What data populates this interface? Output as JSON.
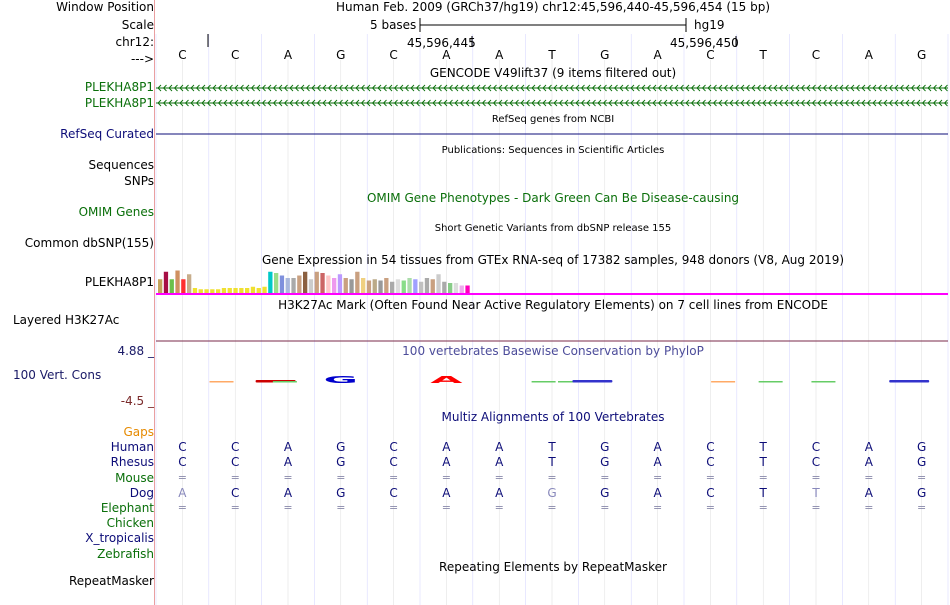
{
  "colors": {
    "gencode": "#0a6f0a",
    "refseq": "#0c0c78",
    "omim": "#0a6f0a",
    "cons_title": "#4c4c9a",
    "cons_pos": "#191966",
    "cons_neg": "#7a2a2a",
    "gaps": "#e68a00",
    "species": "#0c0c78",
    "species_green": "#0a6f0a",
    "h3k27ac": "#ff00ff",
    "gridline": "#bbbbff"
  },
  "header": {
    "window_label": "Window Position",
    "window_title": "Human Feb. 2009 (GRCh37/hg19)   chr12:45,596,440-45,596,454 (15 bp)",
    "scale_label": "Scale",
    "scale_text": "5 bases",
    "scale_db": "hg19",
    "chrom_label": "chr12:",
    "pos_mark1": "45,596,445",
    "pos_mark2": "45,596,450",
    "strand_label": "--->"
  },
  "sequence": [
    "C",
    "C",
    "A",
    "G",
    "C",
    "A",
    "A",
    "T",
    "G",
    "A",
    "C",
    "T",
    "C",
    "A",
    "G"
  ],
  "tracks": {
    "gencode": {
      "title": "GENCODE V49lift37 (9 items filtered out)",
      "items": [
        "PLEKHA8P1",
        "PLEKHA8P1"
      ]
    },
    "refseq": {
      "title": "RefSeq genes from NCBI",
      "label": "RefSeq Curated"
    },
    "publications": {
      "title": "Publications: Sequences in Scientific Articles",
      "label1": "Sequences",
      "label2": "SNPs"
    },
    "omim": {
      "title": "OMIM Gene Phenotypes - Dark Green Can Be Disease-causing",
      "label": "OMIM Genes"
    },
    "dbsnp": {
      "title": "Short Genetic Variants from dbSNP release 155",
      "label": "Common dbSNP(155)"
    },
    "gtex": {
      "title": "Gene Expression in 54 tissues from GTEx RNA-seq of 17382 samples, 948 donors (V8, Aug 2019)",
      "label": "PLEKHA8P1"
    },
    "h3k27ac": {
      "title": "H3K27Ac Mark (Often Found Near Active Regulatory Elements) on 7 cell lines from ENCODE",
      "label": "Layered H3K27Ac"
    },
    "conservation": {
      "title": "100 vertebrates Basewise Conservation by PhyloP",
      "label": "100 Vert. Cons",
      "max": "4.88 _",
      "min": "-4.5 _"
    },
    "multiz": {
      "title": "Multiz Alignments of 100 Vertebrates"
    },
    "repeatmasker": {
      "title": "Repeating Elements by RepeatMasker",
      "label": "RepeatMasker"
    }
  },
  "species": [
    {
      "name": "Gaps",
      "row": "",
      "color": "gaps"
    },
    {
      "name": "Human",
      "row": "CCAGCAATGACTCAG",
      "color": "species"
    },
    {
      "name": "Rhesus",
      "row": "CCAGCAATGACTCAG",
      "color": "species"
    },
    {
      "name": "Mouse",
      "row": "===============",
      "color": "species_green"
    },
    {
      "name": "Dog",
      "row": "ACAGCAAGGACTTAG",
      "dim": [
        0,
        7,
        12
      ],
      "color": "species"
    },
    {
      "name": "Elephant",
      "row": "= = = = = = = = = = = = = = =",
      "color": "species_green"
    },
    {
      "name": "Chicken",
      "row": "",
      "color": "species_green"
    },
    {
      "name": "X_tropicalis",
      "row": "",
      "color": "species"
    },
    {
      "name": "Zebrafish",
      "row": "",
      "color": "species_green"
    }
  ],
  "gtex_bars": [
    {
      "color": "#c6a45c",
      "value": 0.55
    },
    {
      "color": "#a70f45",
      "value": 0.85
    },
    {
      "color": "#6bc04a",
      "value": 0.55
    },
    {
      "color": "#d09060",
      "value": 0.9
    },
    {
      "color": "#ff3030",
      "value": 0.55
    },
    {
      "color": "#c7ad8b",
      "value": 0.75
    },
    {
      "color": "#f0e030",
      "value": 0.2
    },
    {
      "color": "#f0e030",
      "value": 0.15
    },
    {
      "color": "#f0e030",
      "value": 0.15
    },
    {
      "color": "#f0e030",
      "value": 0.15
    },
    {
      "color": "#f0e030",
      "value": 0.15
    },
    {
      "color": "#f0e030",
      "value": 0.2
    },
    {
      "color": "#f0e030",
      "value": 0.2
    },
    {
      "color": "#f0e030",
      "value": 0.2
    },
    {
      "color": "#f0e030",
      "value": 0.2
    },
    {
      "color": "#f0e030",
      "value": 0.2
    },
    {
      "color": "#f0e030",
      "value": 0.25
    },
    {
      "color": "#f0e030",
      "value": 0.2
    },
    {
      "color": "#f0e030",
      "value": 0.25
    },
    {
      "color": "#00c8c8",
      "value": 0.85
    },
    {
      "color": "#99dd88",
      "value": 0.8
    },
    {
      "color": "#7f90dd",
      "value": 0.7
    },
    {
      "color": "#aab8dd",
      "value": 0.6
    },
    {
      "color": "#aaaaaa",
      "value": 0.6
    },
    {
      "color": "#c9a080",
      "value": 0.7
    },
    {
      "color": "#8b6040",
      "value": 0.85
    },
    {
      "color": "#cccccc",
      "value": 0.55
    },
    {
      "color": "#c9a080",
      "value": 0.85
    },
    {
      "color": "#cc6666",
      "value": 0.8
    },
    {
      "color": "#ffc8c8",
      "value": 0.7
    },
    {
      "color": "#ee99ee",
      "value": 0.6
    },
    {
      "color": "#bb99ff",
      "value": 0.75
    },
    {
      "color": "#c9a080",
      "value": 0.6
    },
    {
      "color": "#999999",
      "value": 0.55
    },
    {
      "color": "#c9a080",
      "value": 0.85
    },
    {
      "color": "#f0d080",
      "value": 0.6
    },
    {
      "color": "#c9a080",
      "value": 0.5
    },
    {
      "color": "#bbaa88",
      "value": 0.55
    },
    {
      "color": "#999999",
      "value": 0.5
    },
    {
      "color": "#c9a080",
      "value": 0.6
    },
    {
      "color": "#aaaaaa",
      "value": 0.45
    },
    {
      "color": "#dddddd",
      "value": 0.55
    },
    {
      "color": "#88dd88",
      "value": 0.5
    },
    {
      "color": "#aaddaa",
      "value": 0.6
    },
    {
      "color": "#a0a0ff",
      "value": 0.55
    },
    {
      "color": "#c0c0c0",
      "value": 0.45
    },
    {
      "color": "#aaaaaa",
      "value": 0.6
    },
    {
      "color": "#c9a080",
      "value": 0.55
    },
    {
      "color": "#cccccc",
      "value": 0.75
    },
    {
      "color": "#aaaaaa",
      "value": 0.45
    },
    {
      "color": "#88cc88",
      "value": 0.4
    },
    {
      "color": "#dddddd",
      "value": 0.4
    },
    {
      "color": "#eeaaee",
      "value": 0.3
    },
    {
      "color": "#ff00bb",
      "value": 0.3
    }
  ],
  "cons_marks": [
    {
      "base": "G",
      "pos": 3,
      "kind": "glyph",
      "color": "#0000cc"
    },
    {
      "base": "A",
      "pos": 5,
      "kind": "glyph",
      "color": "#ff0000"
    },
    {
      "base": "C",
      "pos": 2,
      "kind": "bar",
      "color": "#cc0000"
    },
    {
      "base": "C",
      "pos": 0.9,
      "kind": "dash",
      "color": "#ffaa66"
    },
    {
      "base": "A",
      "pos": 2.1,
      "kind": "dash",
      "color": "#66cc66"
    },
    {
      "base": "A",
      "pos": 7.0,
      "kind": "dash",
      "color": "#66cc66"
    },
    {
      "base": "T",
      "pos": 7.5,
      "kind": "dash",
      "color": "#66cc66"
    },
    {
      "base": "G",
      "pos": 8.0,
      "kind": "bar",
      "color": "#3333cc"
    },
    {
      "base": "C",
      "pos": 10.4,
      "kind": "dash",
      "color": "#ffaa66"
    },
    {
      "base": "T",
      "pos": 11.3,
      "kind": "dash",
      "color": "#66cc66"
    },
    {
      "base": "A",
      "pos": 12.3,
      "kind": "dash",
      "color": "#66cc66"
    },
    {
      "base": "G",
      "pos": 14.0,
      "kind": "bar",
      "color": "#3333cc"
    }
  ]
}
